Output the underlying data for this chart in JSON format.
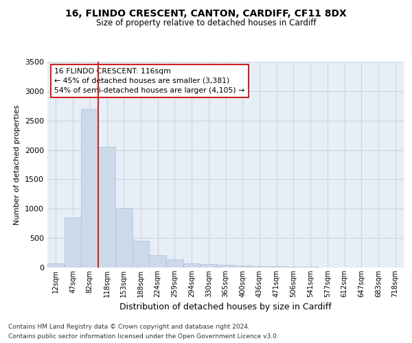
{
  "title1": "16, FLINDO CRESCENT, CANTON, CARDIFF, CF11 8DX",
  "title2": "Size of property relative to detached houses in Cardiff",
  "xlabel": "Distribution of detached houses by size in Cardiff",
  "ylabel": "Number of detached properties",
  "footer1": "Contains HM Land Registry data © Crown copyright and database right 2024.",
  "footer2": "Contains public sector information licensed under the Open Government Licence v3.0.",
  "annotation_title": "16 FLINDO CRESCENT: 116sqm",
  "annotation_line1": "← 45% of detached houses are smaller (3,381)",
  "annotation_line2": "54% of semi-detached houses are larger (4,105) →",
  "bar_color": "#ccd9e8",
  "bar_edge_color": "#a8c0d8",
  "grid_color": "#c8d4e4",
  "bg_color": "#e8eef6",
  "vline_color": "#cc2222",
  "categories": [
    "12sqm",
    "47sqm",
    "82sqm",
    "118sqm",
    "153sqm",
    "188sqm",
    "224sqm",
    "259sqm",
    "294sqm",
    "330sqm",
    "365sqm",
    "400sqm",
    "436sqm",
    "471sqm",
    "506sqm",
    "541sqm",
    "577sqm",
    "612sqm",
    "647sqm",
    "683sqm",
    "718sqm"
  ],
  "values": [
    70,
    850,
    2700,
    2050,
    1010,
    460,
    215,
    145,
    75,
    60,
    50,
    40,
    25,
    20,
    12,
    8,
    5,
    4,
    3,
    2,
    2
  ],
  "property_bin_index": 3,
  "ylim": [
    0,
    3500
  ],
  "yticks": [
    0,
    500,
    1000,
    1500,
    2000,
    2500,
    3000,
    3500
  ]
}
